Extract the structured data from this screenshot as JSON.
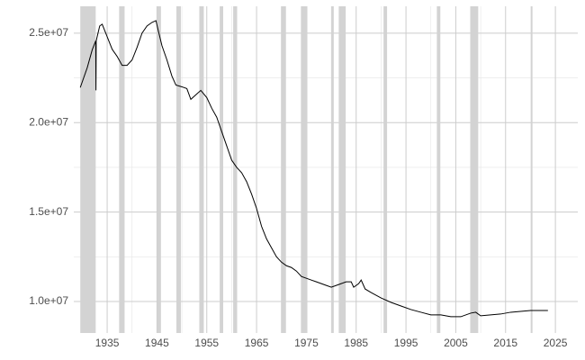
{
  "chart_data": {
    "type": "line",
    "x": [
      1929.6,
      1931,
      1932,
      1932.7,
      1932.75,
      1932.8,
      1933.5,
      1934,
      1935,
      1936,
      1937,
      1938,
      1939,
      1940,
      1941,
      1942,
      1943,
      1944,
      1944.8,
      1945.3,
      1946,
      1947,
      1948,
      1948.8,
      1950,
      1951,
      1951.8,
      1953,
      1953.8,
      1955,
      1956,
      1957,
      1958,
      1959,
      1960,
      1961,
      1962,
      1963,
      1964,
      1965,
      1966,
      1967,
      1968,
      1969,
      1970,
      1971,
      1972,
      1973,
      1974,
      1975,
      1976,
      1977,
      1978,
      1979,
      1980,
      1981,
      1982,
      1983,
      1984,
      1984.5,
      1985.5,
      1986,
      1986.8,
      1988,
      1990,
      1992,
      1994,
      1996,
      1998,
      2000,
      2002,
      2004,
      2006,
      2008,
      2009,
      2010,
      2012,
      2014,
      2016,
      2018,
      2020,
      2022,
      2023.5
    ],
    "series": [
      {
        "color": "#000000",
        "values": [
          21960000,
          23070000,
          24070000,
          24570000,
          21800000,
          24570000,
          25400000,
          25500000,
          24800000,
          24100000,
          23700000,
          23200000,
          23200000,
          23500000,
          24200000,
          25000000,
          25400000,
          25600000,
          25700000,
          25100000,
          24300000,
          23500000,
          22600000,
          22100000,
          22000000,
          21900000,
          21300000,
          21600000,
          21800000,
          21400000,
          20800000,
          20300000,
          19500000,
          18700000,
          17900000,
          17500000,
          17200000,
          16700000,
          16000000,
          15200000,
          14200000,
          13500000,
          13000000,
          12500000,
          12200000,
          12000000,
          11900000,
          11700000,
          11400000,
          11300000,
          11200000,
          11100000,
          11000000,
          10900000,
          10800000,
          10900000,
          11000000,
          11100000,
          11100000,
          10800000,
          11000000,
          11200000,
          10700000,
          10500000,
          10200000,
          9950000,
          9750000,
          9550000,
          9400000,
          9250000,
          9250000,
          9150000,
          9150000,
          9350000,
          9400000,
          9200000,
          9250000,
          9300000,
          9400000,
          9450000,
          9500000,
          9500000,
          9500000
        ]
      }
    ],
    "shaded_periods": [
      [
        1929.6,
        1932.7
      ],
      [
        1937.4,
        1938.5
      ],
      [
        1945.1,
        1945.8
      ],
      [
        1948.9,
        1949.8
      ],
      [
        1953.5,
        1954.4
      ],
      [
        1957.6,
        1958.3
      ],
      [
        1960.3,
        1961.1
      ],
      [
        1969.9,
        1970.9
      ],
      [
        1973.9,
        1975.2
      ],
      [
        1980.0,
        1980.5
      ],
      [
        1981.5,
        1982.9
      ],
      [
        1990.5,
        1991.2
      ],
      [
        2001.2,
        2001.9
      ],
      [
        2007.9,
        2009.5
      ],
      [
        2020.1,
        2020.4
      ]
    ],
    "shade_color": "#d3d3d3",
    "xlim": [
      1928.3,
      2029.5
    ],
    "xticks": [
      1935,
      1945,
      1955,
      1965,
      1975,
      1985,
      1995,
      2005,
      2015,
      2025
    ],
    "xminor": [
      1930,
      1940,
      1950,
      1960,
      1970,
      1980,
      1990,
      2000,
      2010,
      2020
    ],
    "ylim": [
      8240000,
      26500000
    ],
    "yticks": [
      {
        "value": 10000000,
        "label": "1.0e+07"
      },
      {
        "value": 15000000,
        "label": "1.5e+07"
      },
      {
        "value": 20000000,
        "label": "2.0e+07"
      },
      {
        "value": 25000000,
        "label": "2.5e+07"
      }
    ],
    "yminor": [
      12500000,
      17500000,
      22500000
    ],
    "grid": true
  }
}
